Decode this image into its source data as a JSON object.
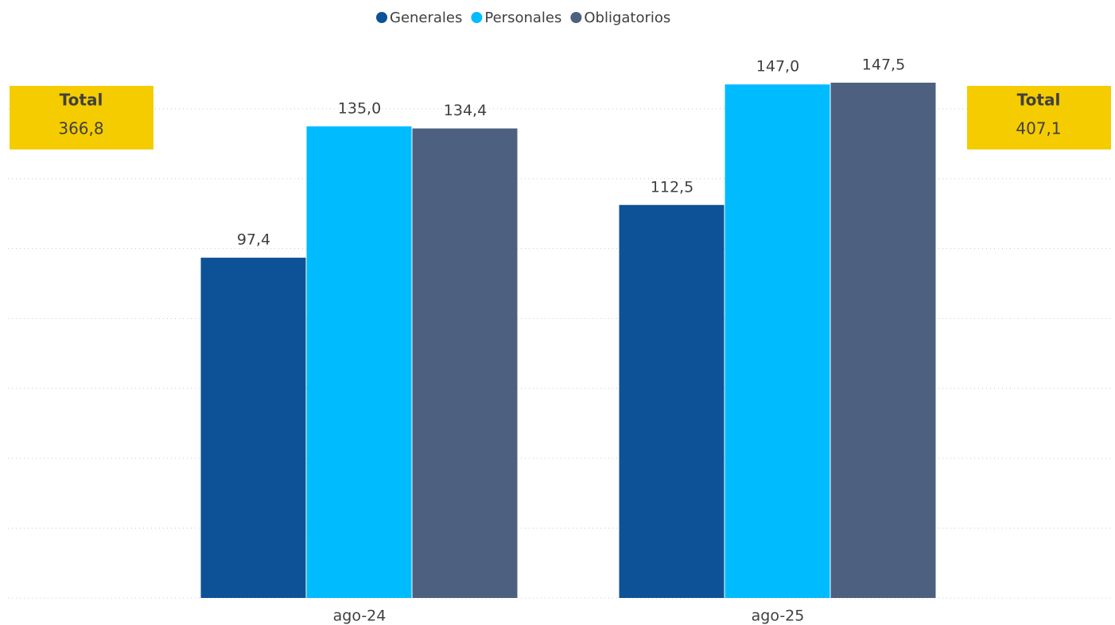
{
  "chart_data": {
    "type": "bar",
    "categories": [
      "ago-24",
      "ago-25"
    ],
    "series": [
      {
        "name": "Generales",
        "color": "#0d5296",
        "values": [
          97.4,
          112.5
        ],
        "value_labels": [
          "97,4",
          "112,5"
        ]
      },
      {
        "name": "Personales",
        "color": "#00bcff",
        "values": [
          135.0,
          147.0
        ],
        "value_labels": [
          "135,0",
          "147,0"
        ]
      },
      {
        "name": "Obligatorios",
        "color": "#4e6080",
        "values": [
          134.4,
          147.5
        ],
        "value_labels": [
          "134,4",
          "147,5"
        ]
      }
    ],
    "ylim": [
      0,
      150
    ],
    "yticks": [
      0,
      20,
      40,
      60,
      80,
      100,
      120,
      140
    ],
    "grid": true,
    "legend": "top",
    "annotations": [
      {
        "title": "Total",
        "text": "366,8",
        "value": 366.8
      },
      {
        "title": "Total",
        "text": "407,1",
        "value": 407.1
      }
    ]
  }
}
